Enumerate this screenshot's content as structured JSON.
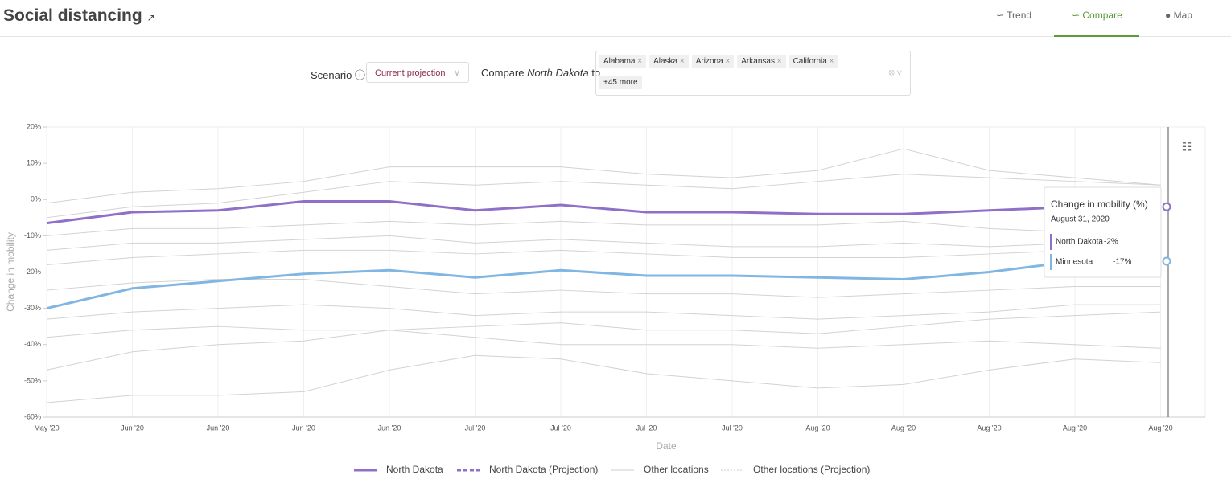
{
  "header": {
    "title": "Social distancing",
    "tabs": [
      "Trend",
      "Compare",
      "Map"
    ]
  },
  "controls": {
    "scenario_label": "Scenario",
    "scenario_value": "Current projection",
    "compare_prefix": "Compare",
    "compare_state": "North Dakota",
    "compare_suffix": "to",
    "tags": [
      "Alabama",
      "Alaska",
      "Arizona",
      "Arkansas",
      "California"
    ],
    "more": "+45 more"
  },
  "chart_data": {
    "type": "line",
    "y_label": "Change in mobility",
    "x_label": "Date",
    "categories": [
      "May '20",
      "Jun '20",
      "Jun '20",
      "Jun '20",
      "Jun '20",
      "Jul '20",
      "Jul '20",
      "Jul '20",
      "Jul '20",
      "Aug '20",
      "Aug '20",
      "Aug '20",
      "Aug '20",
      "Aug '20"
    ],
    "ylim": [
      -60,
      20
    ],
    "yticks": [
      {
        "value": 20,
        "label": "20%"
      },
      {
        "value": 10,
        "label": "10%"
      },
      {
        "value": 0,
        "label": "0%"
      },
      {
        "value": -10,
        "label": "-10%"
      },
      {
        "value": -20,
        "label": "-20%"
      },
      {
        "value": -30,
        "label": "-30%"
      },
      {
        "value": -40,
        "label": "-40%"
      },
      {
        "value": -50,
        "label": "-50%"
      },
      {
        "value": -60,
        "label": "-60%"
      }
    ],
    "series": [
      {
        "name": "North Dakota",
        "color": "#8f6fc8",
        "values": [
          -6.5,
          -3.5,
          -3,
          -0.5,
          -0.5,
          -3,
          -1.5,
          -3.5,
          -3.5,
          -4,
          -4,
          -3,
          -2,
          -2
        ]
      },
      {
        "name": "Minnesota",
        "color": "#82b6e2",
        "values": [
          -30,
          -24.5,
          -22.5,
          -20.5,
          -19.5,
          -21.5,
          -19.5,
          -21,
          -21,
          -21.5,
          -22,
          -20,
          -17,
          -16.5
        ]
      }
    ],
    "other_color": "#d2d2d2",
    "other_locations": [
      [
        -1,
        2,
        3,
        5,
        9,
        9,
        9,
        7,
        6,
        8,
        14,
        8,
        6,
        4
      ],
      [
        -5,
        -2,
        -1,
        2,
        5,
        4,
        5,
        4,
        3,
        5,
        7,
        6,
        5,
        4
      ],
      [
        -10,
        -8,
        -8,
        -7,
        -6,
        -7,
        -6,
        -7,
        -7,
        -7,
        -6,
        -8,
        -9,
        -8
      ],
      [
        -14,
        -12,
        -12,
        -11,
        -10,
        -12,
        -11,
        -12,
        -13,
        -13,
        -12,
        -13,
        -12,
        -12
      ],
      [
        -18,
        -16,
        -15,
        -14,
        -14,
        -15,
        -14,
        -15,
        -16,
        -16,
        -16,
        -15,
        -14,
        -15
      ],
      [
        -25,
        -23,
        -22,
        -22,
        -24,
        -26,
        -25,
        -26,
        -26,
        -27,
        -26,
        -25,
        -24,
        -24
      ],
      [
        -33,
        -31,
        -30,
        -29,
        -30,
        -32,
        -31,
        -31,
        -32,
        -33,
        -32,
        -31,
        -29,
        -29
      ],
      [
        -38,
        -36,
        -35,
        -36,
        -36,
        -35,
        -34,
        -36,
        -36,
        -37,
        -35,
        -33,
        -32,
        -31
      ],
      [
        -47,
        -42,
        -40,
        -39,
        -36,
        -38,
        -40,
        -40,
        -40,
        -41,
        -40,
        -39,
        -40,
        -41
      ],
      [
        -56,
        -54,
        -54,
        -53,
        -47,
        -43,
        -44,
        -48,
        -50,
        -52,
        -51,
        -47,
        -44,
        -45
      ]
    ],
    "legend": [
      "North Dakota",
      "North Dakota (Projection)",
      "Other locations",
      "Other locations (Projection)"
    ],
    "tooltip": {
      "title": "Change in mobility (%)",
      "date": "August 31, 2020",
      "values": [
        -2,
        -17
      ],
      "value_labels": [
        "-2%",
        "-17%"
      ]
    }
  }
}
